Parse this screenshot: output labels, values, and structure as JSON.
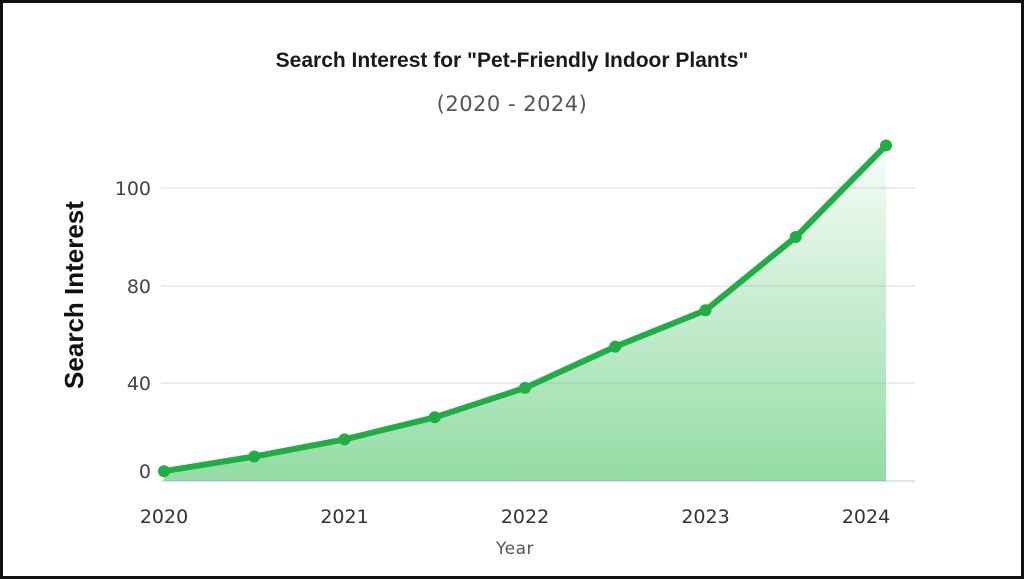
{
  "chart_data": {
    "type": "area",
    "title": "Search Interest for \"Pet-Friendly Indoor Plants\"",
    "subtitle": "(2020 - 2024)",
    "xlabel": "Year",
    "ylabel": "Search Interest",
    "x": [
      2020.0,
      2020.5,
      2021.0,
      2021.5,
      2022.0,
      2022.5,
      2023.0,
      2023.5,
      2024.0
    ],
    "series": [
      {
        "values": [
          4,
          10,
          17,
          26,
          38,
          55,
          70,
          90,
          117
        ]
      }
    ],
    "x_ticks": [
      "2020",
      "2021",
      "2022",
      "2023",
      "2024"
    ],
    "y_ticks": [
      "0",
      "40",
      "80",
      "100"
    ],
    "grid": true,
    "legend": "none",
    "colors": {
      "line": "#1fae43",
      "fill": "#3cbf5a"
    }
  }
}
